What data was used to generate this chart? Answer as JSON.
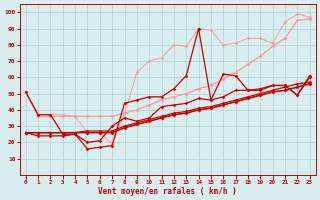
{
  "x": [
    0,
    1,
    2,
    3,
    4,
    5,
    6,
    7,
    8,
    9,
    10,
    11,
    12,
    13,
    14,
    15,
    16,
    17,
    18,
    19,
    20,
    21,
    22,
    23
  ],
  "line1": [
    51,
    37,
    37,
    25,
    25,
    16,
    17,
    18,
    44,
    46,
    48,
    48,
    53,
    61,
    90,
    46,
    62,
    61,
    52,
    52,
    55,
    55,
    49,
    60
  ],
  "line2": [
    26,
    24,
    24,
    24,
    25,
    20,
    21,
    30,
    35,
    33,
    35,
    42,
    43,
    44,
    47,
    46,
    48,
    52,
    52,
    53,
    55,
    55,
    49,
    61
  ],
  "line3_a": [
    26,
    26,
    26,
    26,
    26,
    26,
    26,
    26,
    29,
    31,
    33,
    35,
    37,
    38,
    40,
    41,
    43,
    45,
    47,
    49,
    51,
    52,
    54,
    56
  ],
  "line4": [
    26,
    26,
    26,
    26,
    26,
    27,
    27,
    27,
    30,
    32,
    34,
    36,
    38,
    39,
    41,
    42,
    44,
    46,
    48,
    50,
    52,
    54,
    56,
    57
  ],
  "line3_b": [
    26,
    26,
    26,
    26,
    26,
    26,
    26,
    26,
    29,
    31,
    33,
    35,
    37,
    38,
    40,
    41,
    43,
    45,
    47,
    49,
    51,
    52,
    54,
    56
  ],
  "line5": [
    51,
    36,
    36,
    36,
    36,
    36,
    36,
    36,
    38,
    40,
    43,
    46,
    48,
    50,
    53,
    55,
    59,
    63,
    68,
    73,
    79,
    84,
    95,
    96
  ],
  "line6": [
    51,
    36,
    36,
    36,
    36,
    36,
    36,
    36,
    38,
    40,
    43,
    46,
    48,
    50,
    53,
    55,
    59,
    63,
    68,
    73,
    79,
    84,
    95,
    96
  ],
  "line7": [
    51,
    37,
    37,
    37,
    36,
    26,
    26,
    19,
    38,
    63,
    70,
    72,
    80,
    79,
    90,
    89,
    80,
    81,
    84,
    84,
    81,
    94,
    99,
    97
  ],
  "bg_color": "#d8eeee",
  "grid_color": "#b8d8d8",
  "dark_red": "#cc0000",
  "light_pink": "#ff9999",
  "medium_pink": "#ee6666",
  "xlabel": "Vent moyen/en rafales ( km/h )",
  "ylim": [
    0,
    105
  ],
  "xlim": [
    -0.5,
    23.5
  ],
  "yticks": [
    10,
    20,
    30,
    40,
    50,
    60,
    70,
    80,
    90,
    100
  ],
  "xticks": [
    0,
    1,
    2,
    3,
    4,
    5,
    6,
    7,
    8,
    9,
    10,
    11,
    12,
    13,
    14,
    15,
    16,
    17,
    18,
    19,
    20,
    21,
    22,
    23
  ]
}
